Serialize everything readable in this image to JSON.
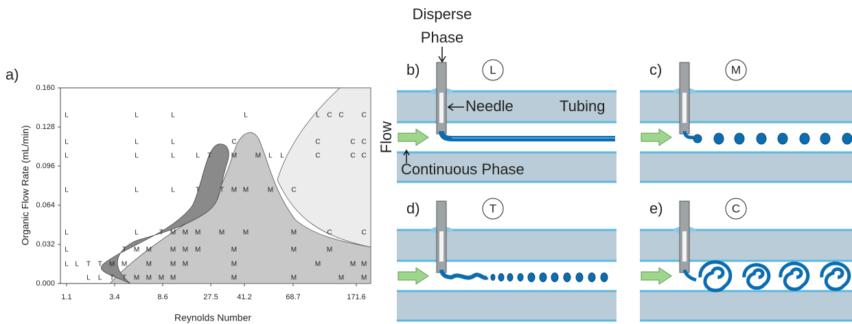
{
  "chart_data": {
    "type": "scatter",
    "panel": "a)",
    "x_label": "Reynolds Number",
    "y_label": "Organic Flow Rate (mL/min)",
    "xlim": [
      0.8,
      195
    ],
    "xticks": [
      1.1,
      3.4,
      8.6,
      27.5,
      41.2,
      68.7,
      171.6
    ],
    "ylim": [
      0,
      0.16
    ],
    "yticks": [
      {
        "value": 0,
        "label": "0.000"
      },
      {
        "value": 0.032,
        "label": "0.032"
      },
      {
        "value": 0.064,
        "label": "0.064"
      },
      {
        "value": 0.096,
        "label": "0.096"
      },
      {
        "value": 0.128,
        "label": "0.128"
      },
      {
        "value": 0.16,
        "label": "0.160"
      }
    ],
    "series": [
      {
        "name": "L",
        "color": "#222222",
        "x": [
          1.1,
          5.78,
          12.65,
          42.0,
          109,
          1.1,
          5.78,
          12.65,
          1.1,
          5.78,
          12.65,
          22.4,
          55.9,
          62.5,
          1.1,
          5.78,
          12.65,
          1.1,
          5.78,
          1.1,
          1.1,
          1.6,
          2.15,
          2.7
        ],
        "values": [
          0.1375,
          0.1375,
          0.1375,
          0.1375,
          0.1375,
          0.1156,
          0.1156,
          0.1156,
          0.1044,
          0.1044,
          0.1044,
          0.1044,
          0.1044,
          0.1044,
          0.0763,
          0.0763,
          0.0763,
          0.0415,
          0.0415,
          0.0275,
          0.0157,
          0.0157,
          0.0045,
          0.0045
        ]
      },
      {
        "name": "T",
        "color": "#222222",
        "x": [
          27.0,
          22.4,
          32.0,
          8.45,
          4.44,
          2.15,
          2.7,
          3.27,
          4.44
        ],
        "values": [
          0.1044,
          0.0763,
          0.0763,
          0.0415,
          0.0275,
          0.0157,
          0.0157,
          0.0045,
          0.0045
        ]
      },
      {
        "name": "M",
        "color": "#222222",
        "x": [
          37.0,
          48.9,
          37.0,
          42.0,
          55.9,
          12.65,
          17.5,
          22.4,
          32.0,
          42.0,
          69.8,
          5.78,
          7.1,
          12.65,
          17.5,
          22.4,
          37.0,
          69.8,
          128,
          3.27,
          4.44,
          7.1,
          12.65,
          17.5,
          37.0,
          109,
          166,
          184,
          5.78,
          7.1,
          8.45,
          12.65,
          37.0,
          69.8,
          147,
          184
        ],
        "values": [
          0.1044,
          0.1044,
          0.0763,
          0.0763,
          0.0763,
          0.0415,
          0.0415,
          0.0415,
          0.0415,
          0.0415,
          0.0415,
          0.0275,
          0.0275,
          0.0275,
          0.0275,
          0.0275,
          0.0275,
          0.0275,
          0.0275,
          0.0157,
          0.0157,
          0.0157,
          0.0157,
          0.0157,
          0.0157,
          0.0157,
          0.0157,
          0.0157,
          0.0045,
          0.0045,
          0.0045,
          0.0045,
          0.0045,
          0.0045,
          0.0045,
          0.0045
        ]
      },
      {
        "name": "C",
        "color": "#222222",
        "x": [
          128,
          147,
          184,
          37.0,
          109,
          166,
          184,
          109,
          166,
          184,
          69.8,
          128,
          184
        ],
        "values": [
          0.1375,
          0.1375,
          0.1375,
          0.1156,
          0.1156,
          0.1156,
          0.1156,
          0.1044,
          0.1044,
          0.1044,
          0.0763,
          0.0415,
          0.0415
        ]
      }
    ]
  },
  "diagram": {
    "disperse_label": [
      "Disperse",
      "Phase"
    ],
    "needle": "Needle",
    "tubing": "Tubing",
    "flow": "Flow",
    "continuous_phase": "Continuous Phase",
    "panels": [
      {
        "letter": "b)",
        "regime": "L"
      },
      {
        "letter": "c)",
        "regime": "M"
      },
      {
        "letter": "d)",
        "regime": "T"
      },
      {
        "letter": "e)",
        "regime": "C"
      }
    ]
  }
}
